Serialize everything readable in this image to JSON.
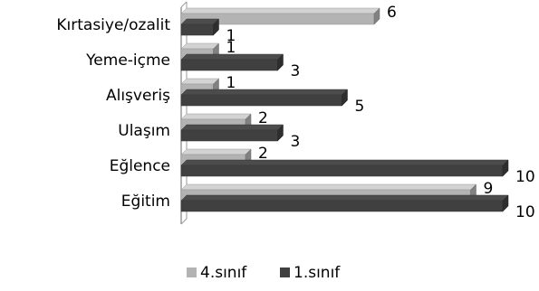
{
  "chart_data": {
    "type": "bar",
    "orientation": "horizontal",
    "style": "3d",
    "categories": [
      "Kırtasiye/ozalit",
      "Yeme-içme",
      "Alışveriş",
      "Ulaşım",
      "Eğlence",
      "Eğitim"
    ],
    "series": [
      {
        "name": "4.sınıf",
        "values": [
          6,
          1,
          1,
          2,
          2,
          9
        ],
        "color": "#b3b3b3"
      },
      {
        "name": "1.sınıf",
        "values": [
          1,
          3,
          5,
          3,
          10,
          10
        ],
        "color": "#404040"
      }
    ],
    "xlim": [
      0,
      10
    ],
    "grid": false,
    "legend_position": "bottom"
  }
}
